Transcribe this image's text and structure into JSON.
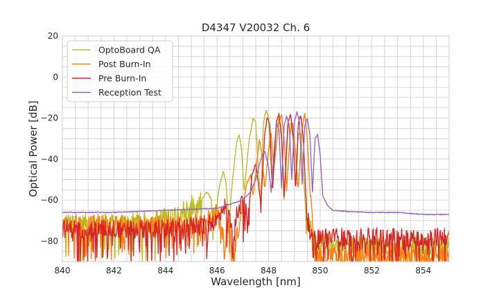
{
  "chart_data": {
    "type": "line",
    "title": "D4347 V20032 Ch. 6",
    "xlabel": "Wavelength [nm]",
    "ylabel": "Optical Power [dB]",
    "xlim": [
      840,
      855
    ],
    "ylim": [
      -90,
      20
    ],
    "xticks": [
      840,
      842,
      844,
      846,
      848,
      850,
      852,
      854
    ],
    "yticks": [
      -80,
      -60,
      -40,
      -20,
      0,
      20
    ],
    "x_tick_labels": [
      "840",
      "842",
      "844",
      "846",
      "848",
      "850",
      "852",
      "854"
    ],
    "y_tick_labels": [
      "−80",
      "−60",
      "−40",
      "−20",
      "0",
      "20"
    ],
    "grid": true,
    "legend_position": "top-left",
    "series": [
      {
        "name": "OptoBoard QA",
        "color": "#bcbd22",
        "points": [
          [
            840,
            -71
          ],
          [
            842,
            -71
          ],
          [
            843.5,
            -70
          ],
          [
            844.5,
            -66
          ],
          [
            845.0,
            -62
          ],
          [
            845.2,
            -64
          ],
          [
            845.5,
            -58
          ],
          [
            845.6,
            -56
          ],
          [
            845.75,
            -59
          ],
          [
            845.85,
            -68
          ],
          [
            846,
            -60
          ],
          [
            846.15,
            -50
          ],
          [
            846.25,
            -46
          ],
          [
            846.35,
            -52
          ],
          [
            846.45,
            -72
          ],
          [
            846.6,
            -50
          ],
          [
            846.75,
            -33
          ],
          [
            846.85,
            -28
          ],
          [
            846.95,
            -35
          ],
          [
            847.05,
            -56
          ],
          [
            847.25,
            -30
          ],
          [
            847.4,
            -20
          ],
          [
            847.5,
            -22
          ],
          [
            847.6,
            -45
          ],
          [
            847.7,
            -60
          ],
          [
            847.8,
            -22
          ],
          [
            847.9,
            -16
          ],
          [
            848.0,
            -20
          ],
          [
            848.15,
            -55
          ],
          [
            848.3,
            -25
          ],
          [
            848.4,
            -20
          ],
          [
            848.5,
            -30
          ],
          [
            848.6,
            -60
          ],
          [
            848.75,
            -25
          ],
          [
            848.85,
            -22
          ],
          [
            848.95,
            -30
          ],
          [
            849.05,
            -52
          ],
          [
            849.15,
            -28
          ],
          [
            849.25,
            -28
          ],
          [
            849.35,
            -48
          ],
          [
            849.45,
            -68
          ],
          [
            849.6,
            -72
          ],
          [
            849.75,
            -78
          ],
          [
            850,
            -80
          ],
          [
            851,
            -82
          ],
          [
            852,
            -82
          ],
          [
            853,
            -82
          ],
          [
            855,
            -82
          ]
        ]
      },
      {
        "name": "Post Burn-In",
        "color": "#ff7f0e",
        "points": [
          [
            840,
            -72
          ],
          [
            842,
            -72
          ],
          [
            844,
            -72
          ],
          [
            845.5,
            -70
          ],
          [
            845.8,
            -68
          ],
          [
            846.05,
            -65
          ],
          [
            846.3,
            -82
          ],
          [
            846.45,
            -70
          ],
          [
            846.6,
            -88
          ],
          [
            846.9,
            -70
          ],
          [
            847.15,
            -52
          ],
          [
            847.3,
            -48
          ],
          [
            847.4,
            -58
          ],
          [
            847.55,
            -40
          ],
          [
            847.65,
            -30
          ],
          [
            847.75,
            -40
          ],
          [
            847.85,
            -55
          ],
          [
            848.0,
            -35
          ],
          [
            848.1,
            -28
          ],
          [
            848.2,
            -45
          ],
          [
            848.4,
            -22
          ],
          [
            848.5,
            -18
          ],
          [
            848.6,
            -30
          ],
          [
            848.7,
            -55
          ],
          [
            848.85,
            -25
          ],
          [
            848.95,
            -22
          ],
          [
            849.05,
            -38
          ],
          [
            849.15,
            -55
          ],
          [
            849.3,
            -25
          ],
          [
            849.4,
            -18
          ],
          [
            849.5,
            -30
          ],
          [
            849.6,
            -55
          ],
          [
            849.7,
            -70
          ],
          [
            849.8,
            -84
          ],
          [
            850,
            -88
          ],
          [
            851,
            -86
          ],
          [
            852,
            -86
          ],
          [
            853,
            -86
          ],
          [
            855,
            -86
          ]
        ]
      },
      {
        "name": "Pre Burn-In",
        "color": "#d62728",
        "points": [
          [
            840,
            -74
          ],
          [
            842,
            -74
          ],
          [
            844,
            -74
          ],
          [
            845.5,
            -72
          ],
          [
            846,
            -70
          ],
          [
            846.25,
            -62
          ],
          [
            846.4,
            -66
          ],
          [
            846.6,
            -72
          ],
          [
            846.8,
            -66
          ],
          [
            846.95,
            -58
          ],
          [
            847.05,
            -62
          ],
          [
            847.2,
            -70
          ],
          [
            847.35,
            -48
          ],
          [
            847.5,
            -42
          ],
          [
            847.6,
            -52
          ],
          [
            847.7,
            -62
          ],
          [
            847.85,
            -28
          ],
          [
            847.95,
            -19
          ],
          [
            848.05,
            -24
          ],
          [
            848.15,
            -56
          ],
          [
            848.3,
            -22
          ],
          [
            848.4,
            -18
          ],
          [
            848.5,
            -28
          ],
          [
            848.6,
            -58
          ],
          [
            848.75,
            -22
          ],
          [
            848.85,
            -18
          ],
          [
            848.95,
            -28
          ],
          [
            849.05,
            -56
          ],
          [
            849.15,
            -22
          ],
          [
            849.25,
            -19
          ],
          [
            849.35,
            -30
          ],
          [
            849.45,
            -60
          ],
          [
            849.55,
            -72
          ],
          [
            849.7,
            -80
          ],
          [
            850,
            -78
          ],
          [
            851,
            -78
          ],
          [
            852,
            -78
          ],
          [
            853,
            -78
          ],
          [
            855,
            -78
          ]
        ]
      },
      {
        "name": "Reception Test",
        "color": "#9467bd",
        "points": [
          [
            840,
            -66
          ],
          [
            841,
            -66
          ],
          [
            842,
            -66
          ],
          [
            843,
            -65.5
          ],
          [
            844,
            -65
          ],
          [
            845,
            -64.5
          ],
          [
            846,
            -64
          ],
          [
            846.5,
            -62
          ],
          [
            847,
            -60
          ],
          [
            847.3,
            -56
          ],
          [
            847.5,
            -50
          ],
          [
            847.7,
            -40
          ],
          [
            847.85,
            -36
          ],
          [
            848.0,
            -44
          ],
          [
            848.1,
            -56
          ],
          [
            848.2,
            -38
          ],
          [
            848.3,
            -22
          ],
          [
            848.4,
            -26
          ],
          [
            848.5,
            -54
          ],
          [
            848.6,
            -24
          ],
          [
            848.7,
            -19
          ],
          [
            848.8,
            -24
          ],
          [
            848.9,
            -50
          ],
          [
            849.0,
            -22
          ],
          [
            849.1,
            -17
          ],
          [
            849.2,
            -22
          ],
          [
            849.3,
            -52
          ],
          [
            849.4,
            -24
          ],
          [
            849.5,
            -20
          ],
          [
            849.6,
            -28
          ],
          [
            849.7,
            -56
          ],
          [
            849.8,
            -30
          ],
          [
            849.9,
            -28
          ],
          [
            850.0,
            -38
          ],
          [
            850.1,
            -58
          ],
          [
            850.3,
            -63
          ],
          [
            850.5,
            -65
          ],
          [
            851,
            -65.5
          ],
          [
            852,
            -66
          ],
          [
            853,
            -66
          ],
          [
            854,
            -67
          ],
          [
            855,
            -67
          ]
        ]
      }
    ]
  }
}
